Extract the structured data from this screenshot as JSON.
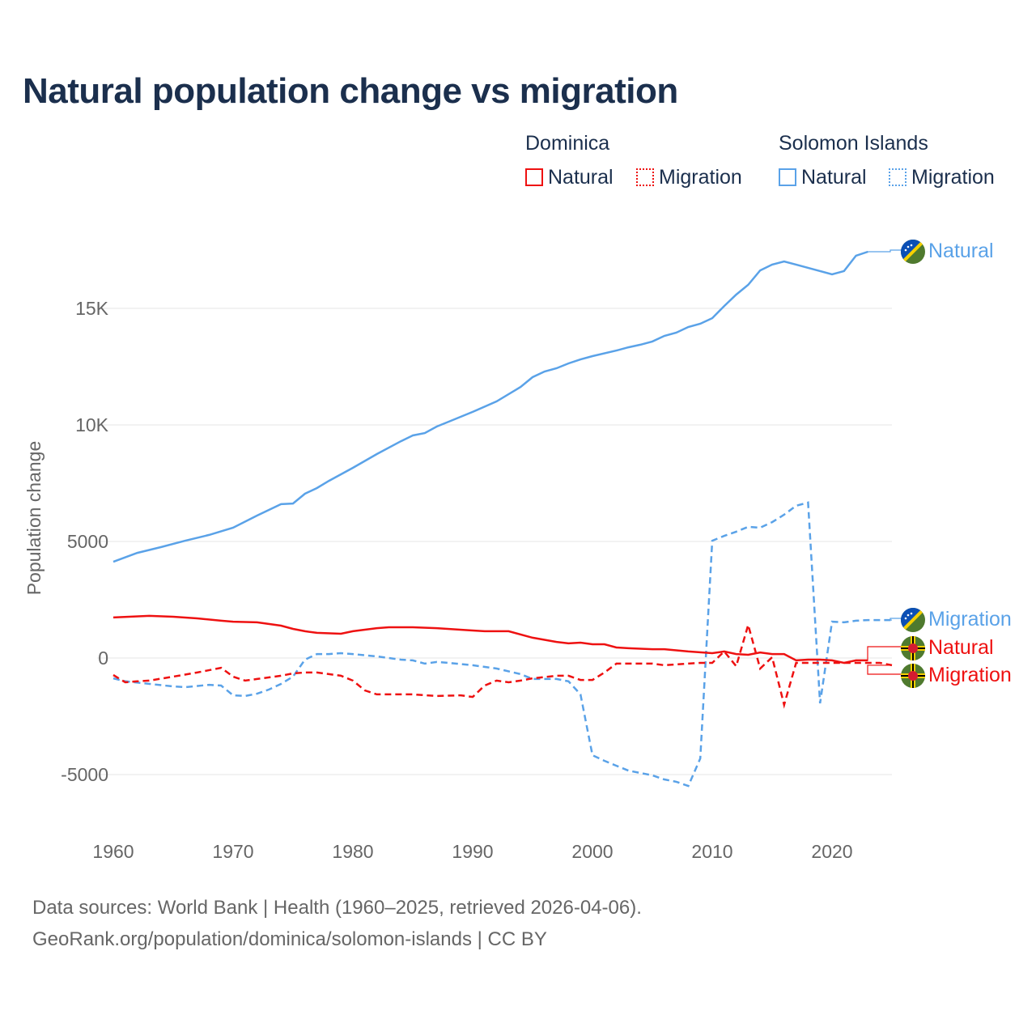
{
  "chart_data": {
    "type": "line",
    "title": "Natural population change vs migration",
    "ylabel": "Population change",
    "xlabel": "",
    "xlim": [
      1960,
      2025
    ],
    "ylim": [
      -6000,
      18500
    ],
    "xticks": [
      1960,
      1970,
      1980,
      1990,
      2000,
      2010,
      2020
    ],
    "yticks": [
      {
        "v": -5000,
        "label": "-5000"
      },
      {
        "v": 0,
        "label": "0"
      },
      {
        "v": 5000,
        "label": "5000"
      },
      {
        "v": 10000,
        "label": "10K"
      },
      {
        "v": 15000,
        "label": "15K"
      }
    ],
    "legend": {
      "placement": "top-right",
      "groups": [
        {
          "title": "Dominica",
          "items": [
            "Natural",
            "Migration"
          ]
        },
        {
          "title": "Solomon Islands",
          "items": [
            "Natural",
            "Migration"
          ]
        }
      ]
    },
    "series": [
      {
        "name": "Solomon Islands Natural",
        "country": "Solomon Islands",
        "kind": "Natural",
        "color": "#5aa2e8",
        "dash": false,
        "end_label": "Natural",
        "x": [
          1960,
          1962,
          1964,
          1966,
          1968,
          1970,
          1972,
          1974,
          1975,
          1976,
          1977,
          1978,
          1980,
          1982,
          1984,
          1985,
          1986,
          1987,
          1988,
          1990,
          1992,
          1994,
          1995,
          1996,
          1997,
          1998,
          1999,
          2000,
          2002,
          2003,
          2004,
          2005,
          2006,
          2007,
          2008,
          2009,
          2010,
          2011,
          2012,
          2013,
          2014,
          2015,
          2016,
          2017,
          2018,
          2019,
          2020,
          2021,
          2022,
          2023
        ],
        "y": [
          4130,
          4510,
          4760,
          5030,
          5280,
          5590,
          6110,
          6600,
          6630,
          7050,
          7290,
          7600,
          8160,
          8750,
          9300,
          9550,
          9650,
          9930,
          10140,
          10560,
          11010,
          11630,
          12050,
          12290,
          12430,
          12640,
          12810,
          12950,
          13190,
          13330,
          13440,
          13580,
          13820,
          13960,
          14200,
          14340,
          14580,
          15100,
          15590,
          16010,
          16630,
          16880,
          17010,
          16880,
          16740,
          16600,
          16460,
          16600,
          17260,
          17430
        ]
      },
      {
        "name": "Solomon Islands Migration",
        "country": "Solomon Islands",
        "kind": "Migration",
        "color": "#5aa2e8",
        "dash": true,
        "end_label": "Migration",
        "x": [
          1960,
          1961,
          1965,
          1966,
          1968,
          1969,
          1970,
          1971,
          1972,
          1973,
          1974,
          1975,
          1976,
          1977,
          1978,
          1979,
          1980,
          1982,
          1984,
          1985,
          1986,
          1987,
          1988,
          1990,
          1992,
          1994,
          1995,
          1997,
          1998,
          1999,
          2000,
          2001,
          2002,
          2003,
          2005,
          2006,
          2007,
          2008,
          2009,
          2010,
          2011,
          2012,
          2013,
          2014,
          2015,
          2016,
          2017,
          2018,
          2019,
          2020,
          2021,
          2022,
          2023,
          2024,
          2025
        ],
        "y": [
          -870,
          -1000,
          -1220,
          -1250,
          -1150,
          -1180,
          -1600,
          -1630,
          -1530,
          -1350,
          -1110,
          -800,
          -70,
          170,
          170,
          210,
          170,
          70,
          -70,
          -100,
          -240,
          -170,
          -210,
          -310,
          -450,
          -690,
          -900,
          -900,
          -1000,
          -1560,
          -4170,
          -4410,
          -4620,
          -4830,
          -5030,
          -5210,
          -5310,
          -5490,
          -4310,
          5030,
          5240,
          5420,
          5630,
          5590,
          5830,
          6150,
          6530,
          6670,
          -1940,
          1560,
          1530,
          1600,
          1630,
          1630,
          1630
        ]
      },
      {
        "name": "Dominica Natural",
        "country": "Dominica",
        "kind": "Natural",
        "color": "#ee1111",
        "dash": false,
        "end_label": "Natural",
        "x": [
          1960,
          1963,
          1965,
          1967,
          1969,
          1970,
          1972,
          1974,
          1975,
          1976,
          1977,
          1979,
          1980,
          1982,
          1983,
          1985,
          1987,
          1990,
          1991,
          1993,
          1995,
          1997,
          1998,
          1999,
          2000,
          2001,
          2002,
          2003,
          2005,
          2006,
          2008,
          2010,
          2011,
          2012,
          2013,
          2014,
          2015,
          2016,
          2017,
          2018,
          2019,
          2020,
          2021,
          2022,
          2023
        ],
        "y": [
          1740,
          1810,
          1770,
          1700,
          1600,
          1560,
          1530,
          1390,
          1250,
          1150,
          1080,
          1040,
          1150,
          1280,
          1320,
          1320,
          1280,
          1180,
          1150,
          1150,
          870,
          690,
          630,
          660,
          590,
          590,
          450,
          420,
          380,
          380,
          280,
          210,
          280,
          170,
          140,
          240,
          170,
          170,
          -100,
          -70,
          -70,
          -100,
          -210,
          -100,
          -100
        ]
      },
      {
        "name": "Dominica Migration",
        "country": "Dominica",
        "kind": "Migration",
        "color": "#ee1111",
        "dash": true,
        "end_label": "Migration",
        "x": [
          1960,
          1961,
          1962,
          1963,
          1965,
          1967,
          1969,
          1970,
          1971,
          1972,
          1974,
          1975,
          1976,
          1977,
          1979,
          1980,
          1981,
          1982,
          1985,
          1987,
          1989,
          1990,
          1991,
          1992,
          1993,
          1994,
          1995,
          1997,
          1998,
          1999,
          2000,
          2001,
          2002,
          2005,
          2006,
          2008,
          2009,
          2010,
          2011,
          2012,
          2013,
          2014,
          2015,
          2016,
          2017,
          2023,
          2024,
          2025
        ],
        "y": [
          -730,
          -1040,
          -1000,
          -970,
          -800,
          -620,
          -420,
          -800,
          -970,
          -900,
          -760,
          -660,
          -620,
          -620,
          -760,
          -970,
          -1390,
          -1560,
          -1560,
          -1630,
          -1600,
          -1670,
          -1180,
          -970,
          -1040,
          -970,
          -870,
          -760,
          -760,
          -940,
          -940,
          -620,
          -240,
          -240,
          -310,
          -240,
          -210,
          -210,
          280,
          -350,
          1420,
          -450,
          35,
          -2010,
          -210,
          -210,
          -210,
          -310
        ]
      }
    ]
  },
  "sources": {
    "line1": "Data sources: World Bank | Health (1960–2025, retrieved 2026-04-06).",
    "line2": "GeoRank.org/population/dominica/solomon-islands | CC BY"
  }
}
